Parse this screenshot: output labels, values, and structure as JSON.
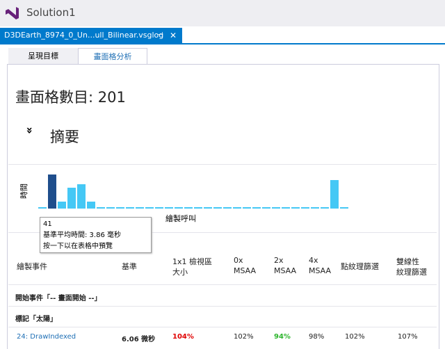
{
  "window": {
    "title": "Solution1"
  },
  "document_tab": {
    "label": "D3DEarth_8974_0_Un...ull_Bilinear.vsglog"
  },
  "tabs": [
    "呈現目標",
    "畫面格分析"
  ],
  "frame_count": "畫面格數目: 201",
  "summary": {
    "title": "摘要"
  },
  "chart_data": {
    "type": "bar",
    "ylabel": "時間",
    "xlabel": "繪製呼叫",
    "values": [
      2,
      49,
      10,
      30,
      35,
      10,
      2,
      2,
      2,
      2,
      2,
      2,
      2,
      2,
      2,
      2,
      2,
      2,
      2,
      2,
      2,
      2,
      2,
      2,
      2,
      2,
      2,
      2,
      2,
      2,
      41,
      2
    ],
    "color": "#45c8f5",
    "highlight_color": "#1f4e8c",
    "highlight": 1
  },
  "tooltip": {
    "lines": [
      "41",
      "基準平均時間: 3.86 毫秒",
      "按一下以在表格中預覽"
    ]
  },
  "table": {
    "columns": [
      [
        "繪製事件"
      ],
      [
        "基準"
      ],
      [
        "1x1 檢視區",
        "大小"
      ],
      [
        "0x",
        "MSAA"
      ],
      [
        "2x",
        "MSAA"
      ],
      [
        "4x",
        "MSAA"
      ],
      [
        "點紋理篩選"
      ],
      [
        "雙線性",
        "紋理篩選"
      ]
    ],
    "groups": [
      "開始事件「-- 畫面開始 --」",
      "標記「太陽」"
    ],
    "rows": [
      [
        "24: DrawIndexed",
        "6.06 微秒",
        "104%",
        "102%",
        "94%",
        "98%",
        "102%",
        "107%"
      ]
    ]
  }
}
